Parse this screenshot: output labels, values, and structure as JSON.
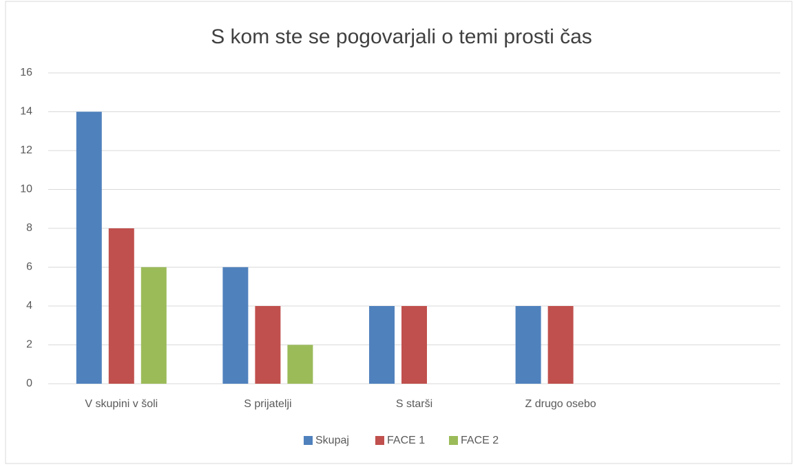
{
  "chart_data": {
    "type": "bar",
    "title": "S kom ste se pogovarjali o temi prosti čas",
    "categories": [
      "V skupini v šoli",
      "S prijatelji",
      "S starši",
      "Z drugo osebo",
      null
    ],
    "series": [
      {
        "name": "Skupaj",
        "color": "#4f81bd",
        "values": [
          14,
          6,
          4,
          4,
          null
        ]
      },
      {
        "name": "FACE 1",
        "color": "#c0504d",
        "values": [
          8,
          4,
          4,
          4,
          null
        ]
      },
      {
        "name": "FACE 2",
        "color": "#9bbb59",
        "values": [
          6,
          2,
          0,
          0,
          null
        ]
      }
    ],
    "ylim": [
      0,
      16
    ],
    "yticks": [
      0,
      2,
      4,
      6,
      8,
      10,
      12,
      14,
      16
    ],
    "grid": true,
    "legend": "bottom"
  }
}
